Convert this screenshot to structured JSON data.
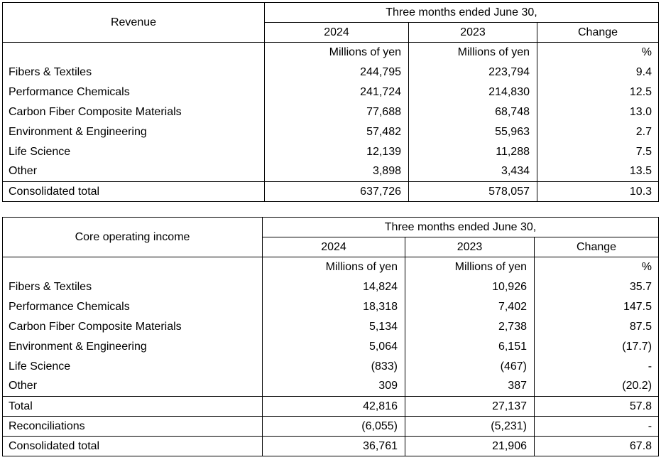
{
  "revenue": {
    "title": "Revenue",
    "period": "Three months ended June 30,",
    "col_2024": "2024",
    "col_2023": "2023",
    "col_change": "Change",
    "unit_2024": "Millions of yen",
    "unit_2023": "Millions of yen",
    "unit_change": "%",
    "rows": [
      {
        "label": "Fibers & Textiles",
        "v2024": "244,795",
        "v2023": "223,794",
        "change": "9.4"
      },
      {
        "label": "Performance Chemicals",
        "v2024": "241,724",
        "v2023": "214,830",
        "change": "12.5"
      },
      {
        "label": "Carbon Fiber Composite Materials",
        "v2024": "77,688",
        "v2023": "68,748",
        "change": "13.0"
      },
      {
        "label": "Environment & Engineering",
        "v2024": "57,482",
        "v2023": "55,963",
        "change": "2.7"
      },
      {
        "label": "Life Science",
        "v2024": "12,139",
        "v2023": "11,288",
        "change": "7.5"
      },
      {
        "label": "Other",
        "v2024": "3,898",
        "v2023": "3,434",
        "change": "13.5"
      }
    ],
    "total": {
      "label": "Consolidated total",
      "v2024": "637,726",
      "v2023": "578,057",
      "change": "10.3"
    }
  },
  "core": {
    "title": "Core operating income",
    "period": "Three months ended June 30,",
    "col_2024": "2024",
    "col_2023": "2023",
    "col_change": "Change",
    "unit_2024": "Millions of yen",
    "unit_2023": "Millions of yen",
    "unit_change": "%",
    "rows": [
      {
        "label": "Fibers & Textiles",
        "v2024": "14,824",
        "v2023": "10,926",
        "change": "35.7"
      },
      {
        "label": "Performance Chemicals",
        "v2024": "18,318",
        "v2023": "7,402",
        "change": "147.5"
      },
      {
        "label": "Carbon Fiber Composite Materials",
        "v2024": "5,134",
        "v2023": "2,738",
        "change": "87.5"
      },
      {
        "label": "Environment & Engineering",
        "v2024": "5,064",
        "v2023": "6,151",
        "change": "(17.7)"
      },
      {
        "label": "Life Science",
        "v2024": "(833)",
        "v2023": "(467)",
        "change": "-"
      },
      {
        "label": "Other",
        "v2024": "309",
        "v2023": "387",
        "change": "(20.2)"
      }
    ],
    "total": {
      "label": "Total",
      "v2024": "42,816",
      "v2023": "27,137",
      "change": "57.8"
    },
    "reconciliations": {
      "label": "Reconciliations",
      "v2024": "(6,055)",
      "v2023": "(5,231)",
      "change": "-"
    },
    "consolidated": {
      "label": "Consolidated total",
      "v2024": "36,761",
      "v2023": "21,906",
      "change": "67.8"
    }
  }
}
